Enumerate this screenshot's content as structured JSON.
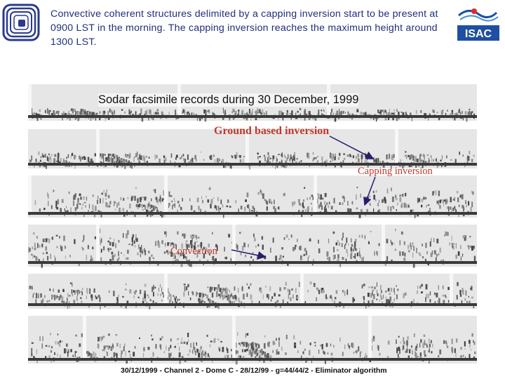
{
  "header": {
    "caption": "Convective coherent structures delimited by a capping inversion start to be present at 0900 LST in the morning. The capping inversion reaches the maximum height around 1300 LST."
  },
  "logos": {
    "left": "institution-logo",
    "right": {
      "name": "isac-logo",
      "text": "ISAC"
    }
  },
  "figure": {
    "title": "Sodar facsimile records during 30 December, 1999",
    "annotations": {
      "ground": "Ground based inversion",
      "capping": "Capping inversion",
      "convection": "Convection"
    },
    "footer": "30/12/1999 - Channel 2 - Dome C - 28/12/99 - g=44/44/2 - Eliminator algorithm"
  },
  "colors": {
    "caption": "#1f2f7a",
    "annotation": "#c0392b",
    "arrow": "#2a1a6e"
  }
}
